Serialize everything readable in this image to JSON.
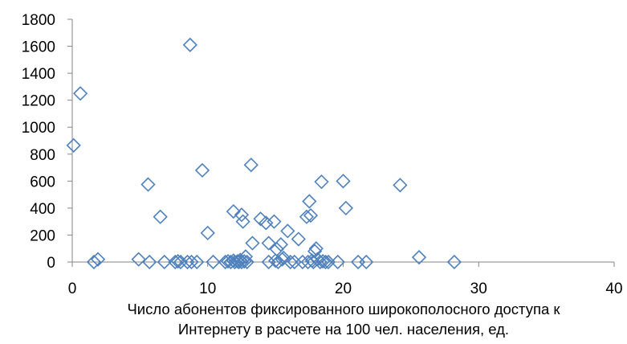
{
  "chart_data": {
    "type": "scatter",
    "title": "",
    "xlabel": [
      "Число абонентов фиксированного широкополосного доступа к",
      "Интернету в расчете на 100 чел. населения, ед."
    ],
    "ylabel": "",
    "xlim": [
      0,
      40
    ],
    "ylim": [
      0,
      1800
    ],
    "xticks": [
      0,
      10,
      20,
      30,
      40
    ],
    "yticks": [
      0,
      200,
      400,
      600,
      800,
      1000,
      1200,
      1400,
      1600,
      1800
    ],
    "grid": false,
    "legend": false,
    "marker": "diamond",
    "marker_color": "#4f81bd",
    "points": [
      {
        "x": 0.1,
        "y": 865
      },
      {
        "x": 0.6,
        "y": 1250
      },
      {
        "x": 1.6,
        "y": 0
      },
      {
        "x": 1.9,
        "y": 20
      },
      {
        "x": 4.9,
        "y": 20
      },
      {
        "x": 5.6,
        "y": 575
      },
      {
        "x": 5.7,
        "y": 0
      },
      {
        "x": 6.5,
        "y": 335
      },
      {
        "x": 6.8,
        "y": 0
      },
      {
        "x": 7.6,
        "y": 0
      },
      {
        "x": 7.8,
        "y": 5
      },
      {
        "x": 8.0,
        "y": 0
      },
      {
        "x": 8.5,
        "y": 0
      },
      {
        "x": 8.7,
        "y": 1610
      },
      {
        "x": 8.8,
        "y": 0
      },
      {
        "x": 9.2,
        "y": 0
      },
      {
        "x": 9.6,
        "y": 680
      },
      {
        "x": 10.0,
        "y": 215
      },
      {
        "x": 10.4,
        "y": 0
      },
      {
        "x": 11.3,
        "y": 0
      },
      {
        "x": 11.5,
        "y": 5
      },
      {
        "x": 11.7,
        "y": 0
      },
      {
        "x": 11.9,
        "y": 375
      },
      {
        "x": 11.9,
        "y": 10
      },
      {
        "x": 12.0,
        "y": 0
      },
      {
        "x": 12.2,
        "y": 5
      },
      {
        "x": 12.3,
        "y": 0
      },
      {
        "x": 12.4,
        "y": 15
      },
      {
        "x": 12.5,
        "y": 0
      },
      {
        "x": 12.5,
        "y": 350
      },
      {
        "x": 12.6,
        "y": 300
      },
      {
        "x": 12.7,
        "y": 5
      },
      {
        "x": 12.8,
        "y": 40
      },
      {
        "x": 12.9,
        "y": 0
      },
      {
        "x": 13.2,
        "y": 720
      },
      {
        "x": 13.3,
        "y": 140
      },
      {
        "x": 13.9,
        "y": 320
      },
      {
        "x": 14.3,
        "y": 290
      },
      {
        "x": 14.5,
        "y": 140
      },
      {
        "x": 14.5,
        "y": 0
      },
      {
        "x": 14.9,
        "y": 300
      },
      {
        "x": 15.0,
        "y": 10
      },
      {
        "x": 15.1,
        "y": 95
      },
      {
        "x": 15.2,
        "y": 0
      },
      {
        "x": 15.4,
        "y": 130
      },
      {
        "x": 15.5,
        "y": 20
      },
      {
        "x": 15.6,
        "y": 30
      },
      {
        "x": 15.9,
        "y": 230
      },
      {
        "x": 16.1,
        "y": 0
      },
      {
        "x": 16.4,
        "y": 0
      },
      {
        "x": 16.7,
        "y": 170
      },
      {
        "x": 17.0,
        "y": 0
      },
      {
        "x": 17.3,
        "y": 335
      },
      {
        "x": 17.4,
        "y": 0
      },
      {
        "x": 17.5,
        "y": 450
      },
      {
        "x": 17.6,
        "y": 345
      },
      {
        "x": 17.7,
        "y": 10
      },
      {
        "x": 17.8,
        "y": 0
      },
      {
        "x": 17.9,
        "y": 80
      },
      {
        "x": 18.0,
        "y": 100
      },
      {
        "x": 18.1,
        "y": 20
      },
      {
        "x": 18.3,
        "y": 0
      },
      {
        "x": 18.4,
        "y": 595
      },
      {
        "x": 18.5,
        "y": 5
      },
      {
        "x": 18.7,
        "y": 0
      },
      {
        "x": 18.9,
        "y": 0
      },
      {
        "x": 19.6,
        "y": 0
      },
      {
        "x": 20.0,
        "y": 600
      },
      {
        "x": 20.2,
        "y": 400
      },
      {
        "x": 21.1,
        "y": 0
      },
      {
        "x": 21.7,
        "y": 0
      },
      {
        "x": 24.2,
        "y": 570
      },
      {
        "x": 25.6,
        "y": 35
      },
      {
        "x": 28.2,
        "y": 0
      }
    ]
  }
}
